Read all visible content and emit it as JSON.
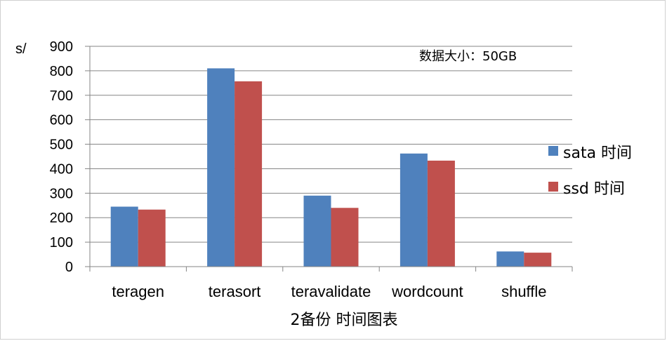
{
  "chart_data": {
    "type": "bar",
    "title": "2备份 时间图表",
    "ylabel": "s/",
    "annotation": "数据大小：50GB",
    "categories": [
      "teragen",
      "terasort",
      "teravalidate",
      "wordcount",
      "shuffle"
    ],
    "ylim": [
      0,
      900
    ],
    "yticks": [
      0,
      100,
      200,
      300,
      400,
      500,
      600,
      700,
      800,
      900
    ],
    "grid": true,
    "legend_position": "right",
    "series": [
      {
        "name": "sata 时间",
        "color": "#4f81bd",
        "values": [
          245,
          810,
          290,
          462,
          62
        ]
      },
      {
        "name": "ssd 时间",
        "color": "#c0504d",
        "values": [
          233,
          757,
          240,
          433,
          57
        ]
      }
    ]
  }
}
